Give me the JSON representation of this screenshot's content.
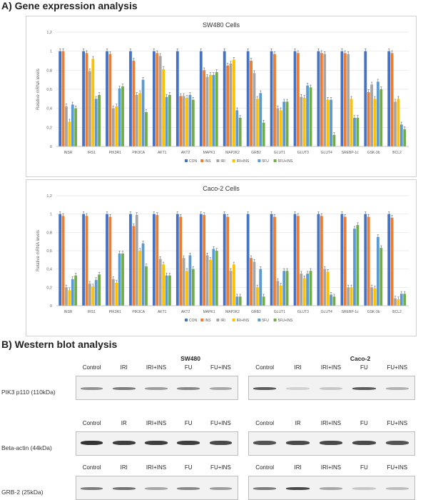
{
  "section_a_title": "A) Gene expression analysis",
  "section_b_title": "B) Western blot analysis",
  "colors": {
    "CON": "#4472c4",
    "INS": "#ed7d31",
    "IRI": "#a5a5a5",
    "IRI+INS": "#ffc000",
    "5FU": "#5b9bd5",
    "5FU+INS": "#70ad47"
  },
  "chart_data": [
    {
      "type": "bar",
      "title": "SW480 Cells",
      "ylabel": "Relative mRNA levels",
      "ylim": [
        0,
        1.2
      ],
      "yticks": [
        "0",
        "0,2",
        "0,4",
        "0,6",
        "0,8",
        "1",
        "1,2"
      ],
      "grid": true,
      "legend_position": "bottom",
      "categories": [
        "INSR",
        "IRS1",
        "PIK3R1",
        "PIK3CA",
        "AKT1",
        "AKT2",
        "MAPK1",
        "MAP2K2",
        "GRB2",
        "GLUT1",
        "GLUT3",
        "GLUT4",
        "SREBP-1c",
        "GSK-3b",
        "BCL2"
      ],
      "series": [
        {
          "name": "CON",
          "values": [
            1,
            1,
            1,
            1,
            1,
            1,
            1,
            1,
            1,
            1,
            1,
            1,
            1,
            1,
            1
          ]
        },
        {
          "name": "INS",
          "values": [
            1,
            0.98,
            0.97,
            0.9,
            0.98,
            0.53,
            0.8,
            0.85,
            0.9,
            0.97,
            0.98,
            0.98,
            0.98,
            0.57,
            0.98
          ]
        },
        {
          "name": "IRI",
          "values": [
            0.42,
            0.79,
            0.4,
            0.54,
            0.95,
            0.53,
            0.73,
            0.87,
            0.77,
            0.4,
            0.52,
            0.97,
            0.97,
            0.65,
            0.47
          ]
        },
        {
          "name": "IRI+INS",
          "values": [
            0.26,
            0.92,
            0.42,
            0.56,
            0.81,
            0.51,
            0.75,
            0.91,
            0.5,
            0.38,
            0.51,
            0.49,
            0.5,
            0.5,
            0.5
          ]
        },
        {
          "name": "5FU",
          "values": [
            0.44,
            0.5,
            0.61,
            0.7,
            0.52,
            0.54,
            0.75,
            0.38,
            0.56,
            0.47,
            0.64,
            0.49,
            0.3,
            0.68,
            0.23
          ]
        },
        {
          "name": "5FU+INS",
          "values": [
            0.4,
            0.54,
            0.63,
            0.36,
            0.54,
            0.49,
            0.78,
            0.3,
            0.25,
            0.47,
            0.62,
            0.12,
            0.3,
            0.6,
            0.18
          ]
        }
      ]
    },
    {
      "type": "bar",
      "title": "Caco-2 Cells",
      "ylabel": "Relative mRNA levels",
      "ylim": [
        0,
        1.2
      ],
      "yticks": [
        "0",
        "0,2",
        "0,4",
        "0,6",
        "0,8",
        "1",
        "1,2"
      ],
      "grid": true,
      "legend_position": "bottom",
      "categories": [
        "INSR",
        "IRS1",
        "PIK3R1",
        "PIK3CA",
        "AKT1",
        "AKT2",
        "MAPK1",
        "MAP2K2",
        "GRB2",
        "GLUT1",
        "GLUT3",
        "GLUT4",
        "SREBP-1c",
        "GSK-3b",
        "BCL2"
      ],
      "series": [
        {
          "name": "CON",
          "values": [
            1,
            1,
            1,
            1,
            1,
            1,
            1,
            1,
            1,
            1,
            1,
            1,
            1,
            1,
            1
          ]
        },
        {
          "name": "INS",
          "values": [
            0.98,
            0.98,
            0.97,
            0.87,
            0.99,
            0.97,
            0.99,
            0.97,
            0.52,
            0.97,
            0.98,
            0.98,
            0.97,
            0.97,
            0.96
          ]
        },
        {
          "name": "IRI",
          "values": [
            0.2,
            0.24,
            0.29,
            0.99,
            0.51,
            0.52,
            0.55,
            0.38,
            0.48,
            0.27,
            0.35,
            0.4,
            0.2,
            0.2,
            0.08
          ]
        },
        {
          "name": "IRI+INS",
          "values": [
            0.17,
            0.21,
            0.25,
            0.6,
            0.45,
            0.38,
            0.5,
            0.45,
            0.2,
            0.22,
            0.3,
            0.37,
            0.2,
            0.19,
            0.07
          ]
        },
        {
          "name": "5FU",
          "values": [
            0.29,
            0.28,
            0.57,
            0.68,
            0.33,
            0.55,
            0.62,
            0.1,
            0.4,
            0.38,
            0.35,
            0.12,
            0.84,
            0.75,
            0.13
          ]
        },
        {
          "name": "5FU+INS",
          "values": [
            0.33,
            0.34,
            0.57,
            0.43,
            0.33,
            0.4,
            0.6,
            0.1,
            0.1,
            0.38,
            0.38,
            0.1,
            0.88,
            0.63,
            0.13
          ]
        }
      ]
    }
  ],
  "western": {
    "sw480_title": "SW480",
    "caco2_title": "Caco-2",
    "rows": [
      {
        "label": "PIK3 p110 (110kDa)",
        "sw480_lanes": [
          "Control",
          "IRI",
          "IRI+INS",
          "FU",
          "FU+INS"
        ],
        "caco2_lanes": [
          "Control",
          "IRI",
          "IRI+INS",
          "FU",
          "FU+INS"
        ]
      },
      {
        "label": "Beta-actin (44kDa)",
        "sw480_lanes": [
          "Control",
          "IR",
          "IRI+INS",
          "FU",
          "FU+INS"
        ],
        "caco2_lanes": [
          "Control",
          "IR",
          "IRI+INS",
          "FU",
          "FU+INS"
        ]
      },
      {
        "label": "GRB-2 (25kDa)",
        "sw480_lanes": [
          "Control",
          "IRI",
          "IRI+INS",
          "FU",
          "FU+INS"
        ],
        "caco2_lanes": [
          "Control",
          "IRI",
          "IRI+INS",
          "FU",
          "FU+INS"
        ]
      }
    ]
  }
}
